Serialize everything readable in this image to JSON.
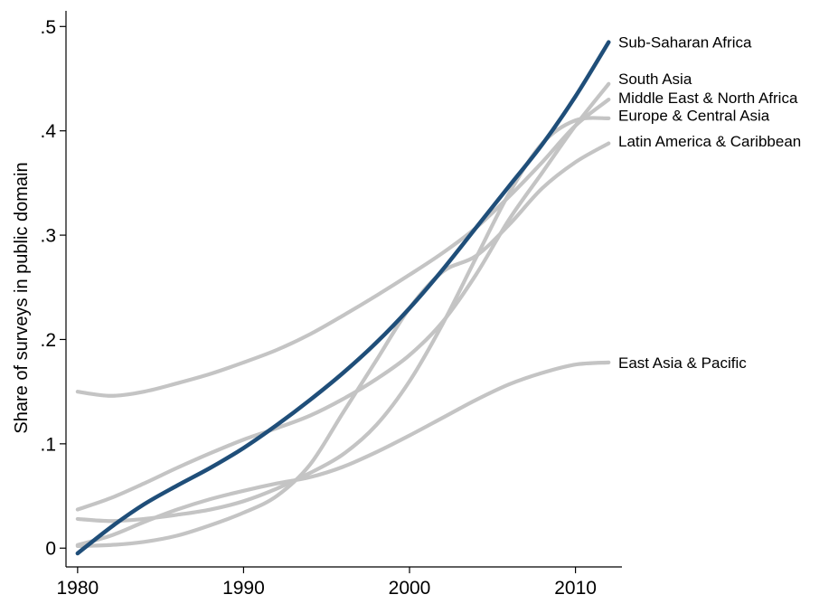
{
  "chart_data": {
    "type": "line",
    "title": "",
    "xlabel": "",
    "ylabel": "Share of surveys in public domain",
    "xlim": [
      1979.3,
      2012.8
    ],
    "ylim": [
      -0.018,
      0.515
    ],
    "x_ticks": [
      1980,
      1990,
      2000,
      2010
    ],
    "x_tick_labels": [
      "1980",
      "1990",
      "2000",
      "2010"
    ],
    "y_ticks": [
      0,
      0.1,
      0.2,
      0.3,
      0.4,
      0.5
    ],
    "y_tick_labels": [
      "0",
      ".1",
      ".2",
      ".3",
      ".4",
      ".5"
    ],
    "grid": false,
    "legend": "none (direct labels at line ends)",
    "colors": {
      "highlight": "#1f4e79",
      "other": "#c4c4c4"
    },
    "series": [
      {
        "name": "East Asia & Pacific",
        "highlight": false,
        "points": [
          [
            1980,
            0.15
          ],
          [
            1982,
            0.146
          ],
          [
            1984,
            0.15
          ],
          [
            1986,
            0.158
          ],
          [
            1988,
            0.167
          ],
          [
            1990,
            0.178
          ],
          [
            1992,
            0.19
          ],
          [
            1994,
            0.205
          ],
          [
            1996,
            0.223
          ],
          [
            1998,
            0.242
          ],
          [
            2000,
            0.262
          ],
          [
            2002,
            0.283
          ],
          [
            2004,
            0.307
          ],
          [
            2006,
            0.337
          ],
          [
            2008,
            0.37
          ],
          [
            2010,
            0.405
          ],
          [
            2012,
            0.43
          ]
        ]
      },
      {
        "name": "South Asia",
        "highlight": false,
        "points": [
          [
            1980,
            0.037
          ],
          [
            1982,
            0.048
          ],
          [
            1984,
            0.062
          ],
          [
            1986,
            0.077
          ],
          [
            1988,
            0.091
          ],
          [
            1990,
            0.104
          ],
          [
            1992,
            0.115
          ],
          [
            1994,
            0.127
          ],
          [
            1996,
            0.143
          ],
          [
            1998,
            0.162
          ],
          [
            2000,
            0.185
          ],
          [
            2002,
            0.217
          ],
          [
            2004,
            0.262
          ],
          [
            2006,
            0.315
          ],
          [
            2008,
            0.36
          ],
          [
            2010,
            0.405
          ],
          [
            2012,
            0.445
          ]
        ]
      },
      {
        "name": "Middle East & North Africa",
        "highlight": false,
        "points": [
          [
            1980,
            0.028
          ],
          [
            1982,
            0.026
          ],
          [
            1984,
            0.028
          ],
          [
            1986,
            0.032
          ],
          [
            1988,
            0.037
          ],
          [
            1990,
            0.045
          ],
          [
            1992,
            0.057
          ],
          [
            1994,
            0.072
          ],
          [
            1996,
            0.09
          ],
          [
            1998,
            0.118
          ],
          [
            2000,
            0.16
          ],
          [
            2002,
            0.215
          ],
          [
            2004,
            0.278
          ],
          [
            2006,
            0.34
          ],
          [
            2008,
            0.388
          ],
          [
            2010,
            0.41
          ],
          [
            2012,
            0.412
          ]
        ]
      },
      {
        "name": "Europe & Central Asia",
        "highlight": false,
        "points": [
          [
            1980,
            0.002
          ],
          [
            1982,
            0.003
          ],
          [
            1984,
            0.006
          ],
          [
            1986,
            0.012
          ],
          [
            1988,
            0.022
          ],
          [
            1990,
            0.034
          ],
          [
            1992,
            0.05
          ],
          [
            1994,
            0.08
          ],
          [
            1996,
            0.13
          ],
          [
            1998,
            0.18
          ],
          [
            2000,
            0.23
          ],
          [
            2002,
            0.265
          ],
          [
            2004,
            0.28
          ],
          [
            2006,
            0.31
          ],
          [
            2008,
            0.345
          ],
          [
            2010,
            0.37
          ],
          [
            2012,
            0.388
          ]
        ]
      },
      {
        "name": "Latin America & Caribbean",
        "highlight": false,
        "points": [
          [
            1980,
            0.003
          ],
          [
            1982,
            0.012
          ],
          [
            1984,
            0.025
          ],
          [
            1986,
            0.037
          ],
          [
            1988,
            0.047
          ],
          [
            1990,
            0.055
          ],
          [
            1992,
            0.062
          ],
          [
            1994,
            0.068
          ],
          [
            1996,
            0.078
          ],
          [
            1998,
            0.092
          ],
          [
            2000,
            0.108
          ],
          [
            2002,
            0.125
          ],
          [
            2004,
            0.142
          ],
          [
            2006,
            0.157
          ],
          [
            2008,
            0.168
          ],
          [
            2010,
            0.176
          ],
          [
            2012,
            0.178
          ]
        ]
      },
      {
        "name": "Sub-Saharan Africa",
        "highlight": true,
        "points": [
          [
            1980,
            -0.005
          ],
          [
            1982,
            0.02
          ],
          [
            1984,
            0.042
          ],
          [
            1986,
            0.06
          ],
          [
            1988,
            0.077
          ],
          [
            1990,
            0.096
          ],
          [
            1992,
            0.118
          ],
          [
            1994,
            0.142
          ],
          [
            1996,
            0.168
          ],
          [
            1998,
            0.197
          ],
          [
            2000,
            0.23
          ],
          [
            2002,
            0.267
          ],
          [
            2004,
            0.307
          ],
          [
            2006,
            0.347
          ],
          [
            2008,
            0.387
          ],
          [
            2010,
            0.433
          ],
          [
            2012,
            0.485
          ]
        ]
      }
    ],
    "end_labels": [
      {
        "text": "Sub-Saharan Africa",
        "y": 0.485
      },
      {
        "text": "South Asia",
        "y": 0.45
      },
      {
        "text": "Middle East & North Africa",
        "y": 0.432
      },
      {
        "text": "Europe & Central Asia",
        "y": 0.415
      },
      {
        "text": "Latin America & Caribbean",
        "y": 0.39
      },
      {
        "text": "East Asia & Pacific",
        "y": 0.178
      }
    ]
  }
}
